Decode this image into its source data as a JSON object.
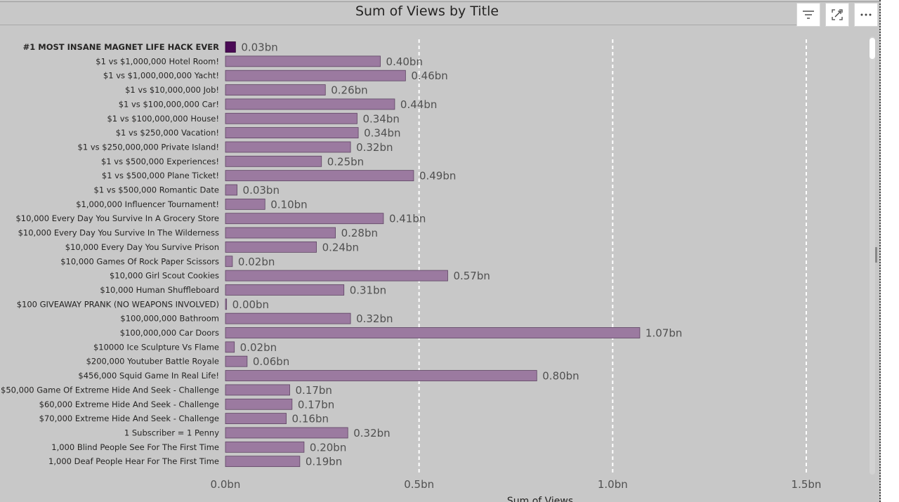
{
  "header": {
    "filter_icon": "filter-icon",
    "focus_icon": "focus-mode-icon",
    "more_icon": "more-options-icon"
  },
  "chart_data": {
    "type": "bar",
    "orientation": "horizontal",
    "title": "Sum of Views by Title",
    "xlabel": "Sum of Views",
    "ylabel": "",
    "xlim": [
      0,
      1.65
    ],
    "x_ticks": [
      {
        "value": 0,
        "label": "0.0bn"
      },
      {
        "value": 0.5,
        "label": "0.5bn"
      },
      {
        "value": 1.0,
        "label": "1.0bn"
      },
      {
        "value": 1.5,
        "label": "1.5bn"
      }
    ],
    "grid": true,
    "bar_color": "#9b7aa0",
    "highlight_color": "#4a0a55",
    "highlighted_category": "#1 MOST INSANE MAGNET LIFE HACK EVER",
    "categories": [
      "#1 MOST INSANE MAGNET LIFE HACK EVER",
      "$1 vs $1,000,000 Hotel Room!",
      "$1 vs $1,000,000,000 Yacht!",
      "$1 vs $10,000,000 Job!",
      "$1 vs $100,000,000 Car!",
      "$1 vs $100,000,000 House!",
      "$1 vs $250,000 Vacation!",
      "$1 vs $250,000,000 Private Island!",
      "$1 vs $500,000 Experiences!",
      "$1 vs $500,000 Plane Ticket!",
      "$1 vs $500,000 Romantic Date",
      "$1,000,000 Influencer Tournament!",
      "$10,000 Every Day You Survive In A Grocery Store",
      "$10,000 Every Day You Survive In The Wilderness",
      "$10,000 Every Day You Survive Prison",
      "$10,000 Games Of Rock Paper Scissors",
      "$10,000 Girl Scout Cookies",
      "$10,000 Human Shuffleboard",
      "$100 GIVEAWAY PRANK (NO WEAPONS INVOLVED)",
      "$100,000,000 Bathroom",
      "$100,000,000 Car Doors",
      "$10000 Ice Sculpture Vs Flame",
      "$200,000 Youtuber Battle Royale",
      "$456,000 Squid Game In Real Life!",
      "$50,000 Game Of Extreme Hide And Seek - Challenge",
      "$60,000 Extreme Hide And Seek - Challenge",
      "$70,000 Extreme Hide And Seek - Challenge",
      "1 Subscriber = 1 Penny",
      "1,000 Blind People See For The First Time",
      "1,000 Deaf People Hear For The First Time"
    ],
    "values": [
      0.026,
      0.4,
      0.465,
      0.258,
      0.437,
      0.34,
      0.343,
      0.323,
      0.248,
      0.486,
      0.03,
      0.102,
      0.408,
      0.284,
      0.235,
      0.018,
      0.574,
      0.306,
      0.003,
      0.323,
      1.07,
      0.023,
      0.056,
      0.804,
      0.166,
      0.172,
      0.157,
      0.316,
      0.203,
      0.192
    ],
    "data_labels": [
      "0.03bn",
      "0.40bn",
      "0.46bn",
      "0.26bn",
      "0.44bn",
      "0.34bn",
      "0.34bn",
      "0.32bn",
      "0.25bn",
      "0.49bn",
      "0.03bn",
      "0.10bn",
      "0.41bn",
      "0.28bn",
      "0.24bn",
      "0.02bn",
      "0.57bn",
      "0.31bn",
      "0.00bn",
      "0.32bn",
      "1.07bn",
      "0.02bn",
      "0.06bn",
      "0.80bn",
      "0.17bn",
      "0.17bn",
      "0.16bn",
      "0.32bn",
      "0.20bn",
      "0.19bn"
    ]
  }
}
